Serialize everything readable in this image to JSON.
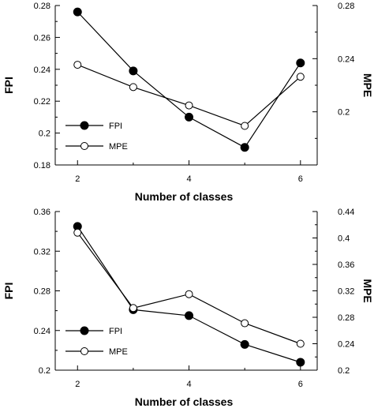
{
  "chart_data": [
    {
      "type": "line",
      "xlabel": "Number of classes",
      "ylabel_left": "FPI",
      "ylabel_right": "MPE",
      "xlim": [
        1.6,
        6.3
      ],
      "ylim_left": [
        0.18,
        0.28
      ],
      "ylim_right": [
        0.16,
        0.28
      ],
      "x_ticks": [
        2,
        4,
        6
      ],
      "x_minor_ticks": [
        3,
        5
      ],
      "y_left_ticks": [
        0.18,
        0.2,
        0.22,
        0.24,
        0.26,
        0.28
      ],
      "y_left_tick_labels": [
        "0.18",
        "0.2",
        "0.22",
        "0.24",
        "0.26",
        "0.28"
      ],
      "y_right_ticks": [
        0.2,
        0.24,
        0.28
      ],
      "y_right_tick_labels": [
        "0.2",
        "0.24",
        "0.28"
      ],
      "legend_position": "lower-left",
      "series": [
        {
          "name": "FPI",
          "axis": "left",
          "marker": "filled-circle",
          "x": [
            2,
            3,
            4,
            5,
            6
          ],
          "values": [
            0.276,
            0.239,
            0.21,
            0.191,
            0.244
          ]
        },
        {
          "name": "MPE",
          "axis": "right",
          "marker": "open-circle",
          "x": [
            2,
            3,
            4,
            5,
            6
          ],
          "values": [
            0.2354,
            0.2186,
            0.2048,
            0.1894,
            0.2264
          ]
        }
      ]
    },
    {
      "type": "line",
      "xlabel": "Number of classes",
      "ylabel_left": "FPI",
      "ylabel_right": "MPE",
      "xlim": [
        1.6,
        6.3
      ],
      "ylim_left": [
        0.2,
        0.36
      ],
      "ylim_right": [
        0.2,
        0.44
      ],
      "x_ticks": [
        2,
        4,
        6
      ],
      "x_minor_ticks": [
        3,
        5
      ],
      "y_left_ticks": [
        0.2,
        0.24,
        0.28,
        0.32,
        0.36
      ],
      "y_left_tick_labels": [
        "0.2",
        "0.24",
        "0.28",
        "0.32",
        "0.36"
      ],
      "y_right_ticks": [
        0.2,
        0.24,
        0.28,
        0.32,
        0.36,
        0.4,
        0.44
      ],
      "y_right_tick_labels": [
        "0.2",
        "0.24",
        "0.28",
        "0.32",
        "0.36",
        "0.4",
        "0.44"
      ],
      "legend_position": "lower-left",
      "series": [
        {
          "name": "FPI",
          "axis": "left",
          "marker": "filled-circle",
          "x": [
            2,
            3,
            4,
            5,
            6
          ],
          "values": [
            0.345,
            0.261,
            0.255,
            0.226,
            0.208
          ]
        },
        {
          "name": "MPE",
          "axis": "right",
          "marker": "open-circle",
          "x": [
            2,
            3,
            4,
            5,
            6
          ],
          "values": [
            0.408,
            0.294,
            0.315,
            0.271,
            0.24
          ]
        }
      ]
    }
  ]
}
